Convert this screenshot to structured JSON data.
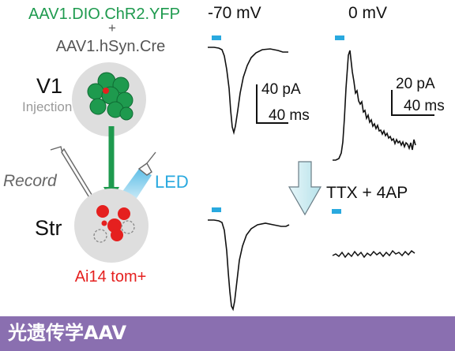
{
  "left": {
    "construct_line1": "AAV1.DIO.ChR2.YFP",
    "construct_plus": "+",
    "construct_line2": "AAV1.hSyn.Cre",
    "region_v1": "V1",
    "injection_label": "Injection",
    "record_label": "Record",
    "led_label": "LED",
    "region_str": "Str",
    "reporter_label": "Ai14 tom+"
  },
  "right": {
    "voltage_neg70": "-70 mV",
    "voltage_0": "0 mV",
    "scale1_pa": "40 pA",
    "scale1_ms": "40 ms",
    "scale2_pa": "20 pA",
    "scale2_ms": "40 ms",
    "treatment": "TTX + 4AP"
  },
  "footer": {
    "title": "光遗传学AAV"
  },
  "colors": {
    "green": "#1e9a4e",
    "red": "#e5201f",
    "light_blue": "#29a9df",
    "circle_gray": "#dedede",
    "footer_purple": "#8a6fb0"
  }
}
